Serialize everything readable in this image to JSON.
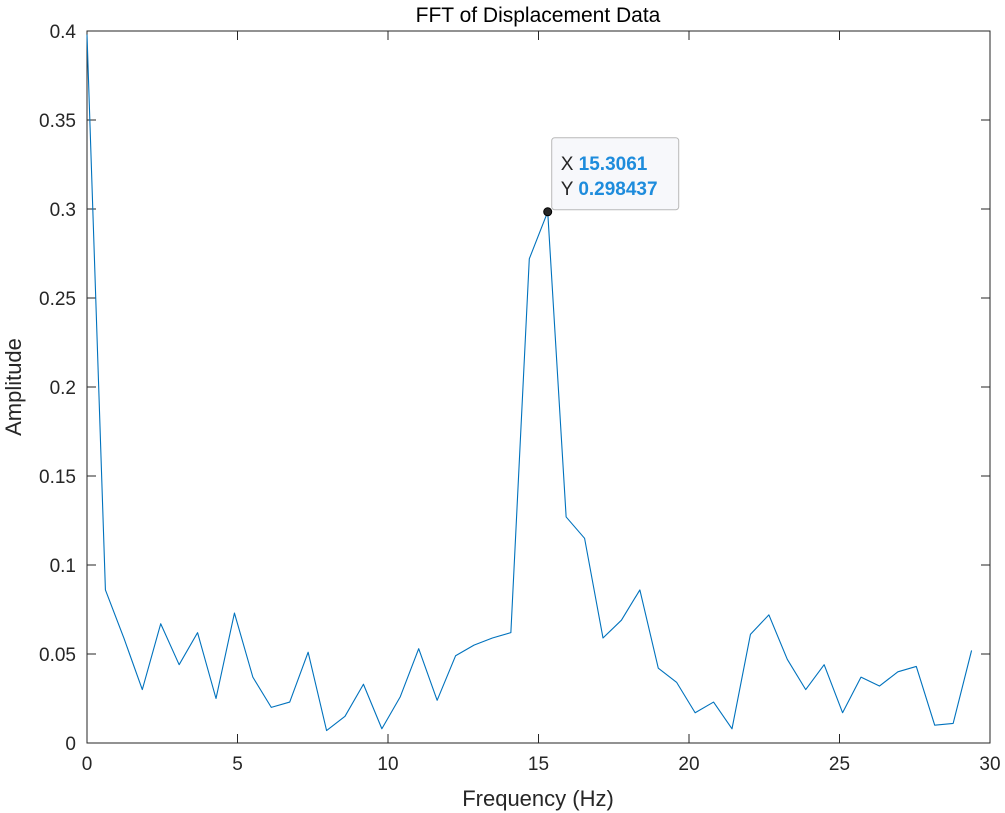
{
  "chart_data": {
    "type": "line",
    "title": "FFT of Displacement Data",
    "xlabel": "Frequency (Hz)",
    "ylabel": "Amplitude",
    "xlim": [
      0,
      30
    ],
    "ylim": [
      0,
      0.4
    ],
    "xticks": [
      "0",
      "5",
      "10",
      "15",
      "20",
      "25",
      "30"
    ],
    "yticks": [
      "0",
      "0.05",
      "0.1",
      "0.15",
      "0.2",
      "0.25",
      "0.3",
      "0.35",
      "0.4"
    ],
    "grid": false,
    "series": [
      {
        "color": "#0072BD",
        "x": [
          0,
          0.612,
          1.224,
          1.837,
          2.449,
          3.061,
          3.673,
          4.286,
          4.898,
          5.51,
          6.122,
          6.735,
          7.347,
          7.959,
          8.571,
          9.184,
          9.796,
          10.408,
          11.02,
          11.633,
          12.245,
          12.857,
          13.469,
          14.082,
          14.694,
          15.306,
          15.918,
          16.531,
          17.143,
          17.755,
          18.367,
          18.98,
          19.592,
          20.204,
          20.816,
          21.429,
          22.041,
          22.653,
          23.265,
          23.878,
          24.49,
          25.102,
          25.714,
          26.327,
          26.939,
          27.551,
          28.163,
          28.776,
          29.388
        ],
        "y": [
          0.398,
          0.086,
          0.059,
          0.03,
          0.067,
          0.044,
          0.062,
          0.025,
          0.073,
          0.037,
          0.02,
          0.023,
          0.051,
          0.007,
          0.015,
          0.033,
          0.008,
          0.026,
          0.053,
          0.024,
          0.049,
          0.055,
          0.059,
          0.062,
          0.272,
          0.298437,
          0.127,
          0.115,
          0.059,
          0.069,
          0.086,
          0.042,
          0.034,
          0.017,
          0.023,
          0.008,
          0.061,
          0.072,
          0.047,
          0.03,
          0.044,
          0.017,
          0.037,
          0.032,
          0.04,
          0.043,
          0.01,
          0.011,
          0.052
        ]
      }
    ],
    "datatip": {
      "x": 15.3061,
      "y": 0.298437,
      "x_label": "X",
      "y_label": "Y",
      "x_text": "15.3061",
      "y_text": "0.298437"
    }
  }
}
